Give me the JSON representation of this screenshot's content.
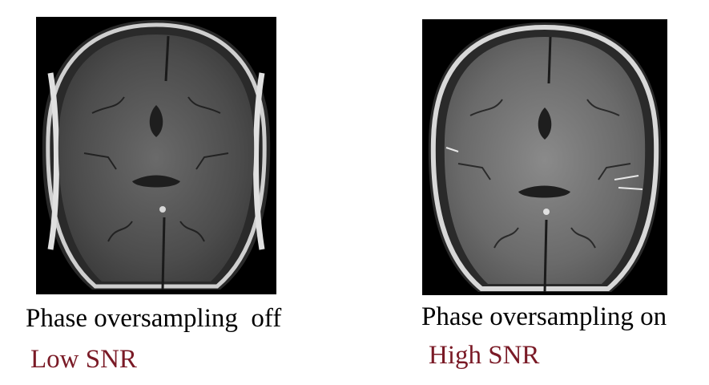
{
  "colors": {
    "background": "#ffffff",
    "caption_text": "#000000",
    "snr_text": "#7a1a26",
    "scan_background": "#000000"
  },
  "left_panel": {
    "image_description_icon": "mri-axial-brain-scan",
    "caption": "Phase oversampling  off",
    "snr_label": "Low SNR"
  },
  "right_panel": {
    "image_description_icon": "mri-axial-brain-scan",
    "caption": "Phase oversampling on",
    "snr_label": "High SNR"
  }
}
